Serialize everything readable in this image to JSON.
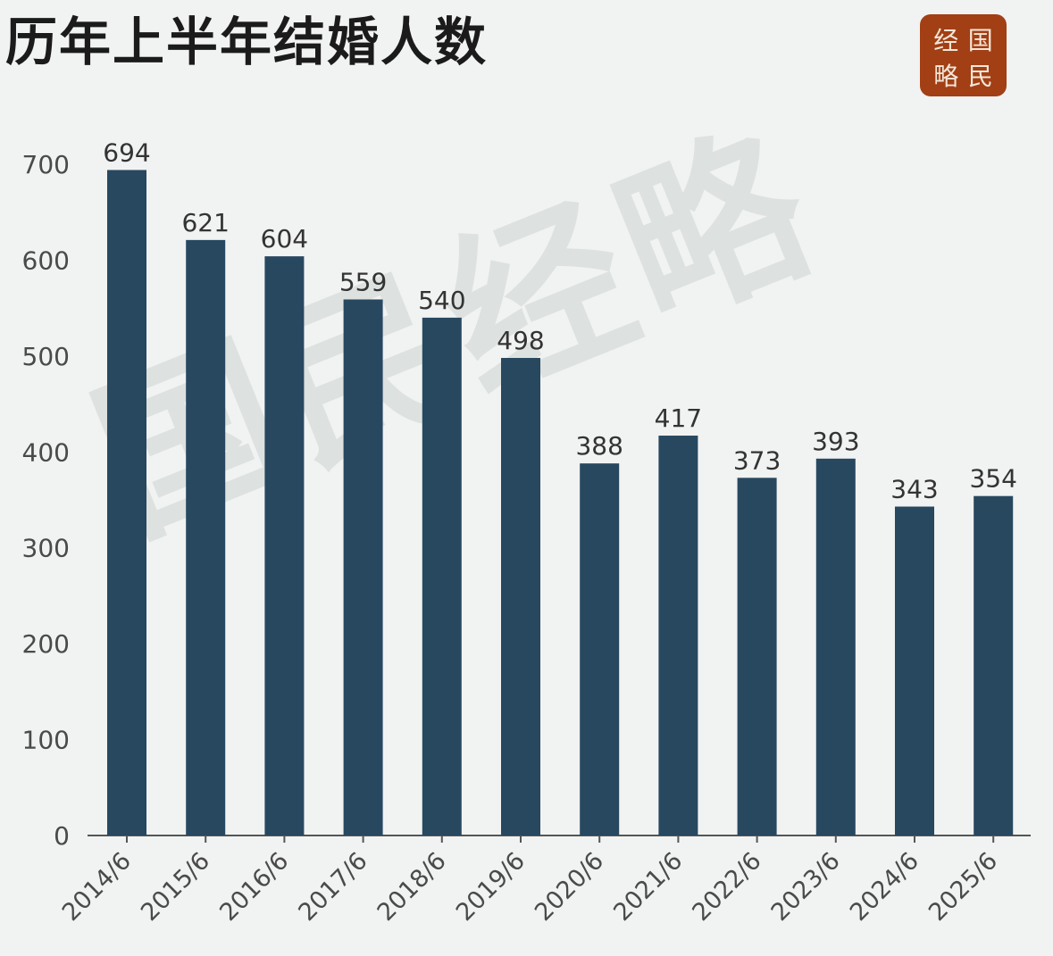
{
  "title": "历年上半年结婚人数",
  "logo": {
    "chars": [
      "经",
      "国",
      "略",
      "民"
    ]
  },
  "watermark": "国民经略",
  "colors": {
    "bar": "#284860",
    "background": "#f1f2f2",
    "logo": "#a23f14"
  },
  "chart_data": {
    "type": "bar",
    "categories": [
      "2014/6",
      "2015/6",
      "2016/6",
      "2017/6",
      "2018/6",
      "2019/6",
      "2020/6",
      "2021/6",
      "2022/6",
      "2023/6",
      "2024/6",
      "2025/6"
    ],
    "values": [
      694,
      621,
      604,
      559,
      540,
      498,
      388,
      417,
      373,
      393,
      343,
      354
    ],
    "title": "历年上半年结婚人数",
    "xlabel": "",
    "ylabel": "",
    "ylim": [
      0,
      700
    ],
    "yticks": [
      0,
      100,
      200,
      300,
      400,
      500,
      600,
      700
    ],
    "grid": false,
    "legend": "none",
    "data_labels": true
  }
}
